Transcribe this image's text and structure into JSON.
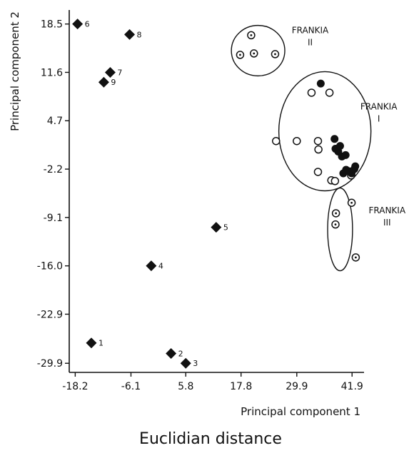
{
  "chart_data": {
    "type": "scatter",
    "xlabel": "Principal component 1",
    "ylabel": "Principal component 2",
    "caption": "Euclidian distance",
    "x_ticks": [
      -18.2,
      -6.1,
      5.8,
      17.8,
      29.9,
      41.9
    ],
    "x_tick_labels": [
      "-18.2",
      "-6.1",
      "5.8",
      "17.8",
      "29.9",
      "41.9"
    ],
    "y_ticks": [
      18.5,
      11.6,
      4.7,
      -2.2,
      -9.1,
      -16.0,
      -22.9,
      -29.9
    ],
    "y_tick_labels": [
      "18.5",
      "11.6",
      "4.7",
      "-2.2",
      "-9.1",
      "-16.0",
      "-22.9",
      "-29.9"
    ],
    "xlim": [
      -19.5,
      44.5
    ],
    "ylim": [
      -31.2,
      20.5
    ],
    "grid": false,
    "diamonds": [
      {
        "label": "1",
        "x": -14.7,
        "y": -27.0
      },
      {
        "label": "2",
        "x": 2.6,
        "y": -28.5
      },
      {
        "label": "3",
        "x": 5.8,
        "y": -29.9
      },
      {
        "label": "4",
        "x": -1.7,
        "y": -16.0
      },
      {
        "label": "5",
        "x": 12.4,
        "y": -10.5
      },
      {
        "label": "6",
        "x": -17.7,
        "y": 18.5
      },
      {
        "label": "7",
        "x": -10.6,
        "y": 11.6
      },
      {
        "label": "8",
        "x": -6.4,
        "y": 17.0
      },
      {
        "label": "9",
        "x": -12.0,
        "y": 10.2
      }
    ],
    "groups": [
      {
        "label_line1": "FRANKIA",
        "label_line2": "II",
        "label_anchor": {
          "x": 32.8,
          "y": 17.2
        },
        "ellipse": {
          "cx": 21.5,
          "cy": 14.7,
          "rx": 5.8,
          "ry": 3.6
        },
        "dot_circles": [
          {
            "x": 20.0,
            "y": 16.9
          },
          {
            "x": 17.6,
            "y": 14.1
          },
          {
            "x": 20.6,
            "y": 14.3
          },
          {
            "x": 25.2,
            "y": 14.2
          }
        ],
        "open_circles": [],
        "filled_circles": []
      },
      {
        "label_line1": "FRANKIA",
        "label_line2": "I",
        "label_anchor": {
          "x": 47.7,
          "y": 6.3
        },
        "ellipse": {
          "cx": 36.0,
          "cy": 3.2,
          "rx": 10.0,
          "ry": 8.5
        },
        "dot_circles": [
          {
            "x": 41.7,
            "y": -3.1
          }
        ],
        "open_circles": [
          {
            "x": 25.4,
            "y": 1.8
          },
          {
            "x": 29.9,
            "y": 1.8
          },
          {
            "x": 33.1,
            "y": 8.7
          },
          {
            "x": 34.5,
            "y": 1.8
          },
          {
            "x": 34.6,
            "y": 0.6
          },
          {
            "x": 34.5,
            "y": -2.6
          },
          {
            "x": 37.0,
            "y": 8.7
          },
          {
            "x": 37.4,
            "y": -3.8
          },
          {
            "x": 38.2,
            "y": -3.9
          }
        ],
        "filled_circles": [
          {
            "x": 35.1,
            "y": 10.0
          },
          {
            "x": 38.1,
            "y": 2.1
          },
          {
            "x": 38.3,
            "y": 0.7
          },
          {
            "x": 38.9,
            "y": 0.3
          },
          {
            "x": 39.3,
            "y": 1.1
          },
          {
            "x": 39.7,
            "y": -0.4
          },
          {
            "x": 40.5,
            "y": -0.2
          },
          {
            "x": 40.0,
            "y": -2.8
          },
          {
            "x": 40.6,
            "y": -2.3
          },
          {
            "x": 41.8,
            "y": -2.8
          },
          {
            "x": 42.4,
            "y": -2.2
          },
          {
            "x": 41.2,
            "y": -2.5
          },
          {
            "x": 42.6,
            "y": -1.8
          }
        ]
      },
      {
        "label_line1": "FRANKIA",
        "label_line2": "III",
        "label_anchor": {
          "x": 49.5,
          "y": -8.5
        },
        "ellipse": {
          "cx": 39.3,
          "cy": -10.8,
          "rx": 2.7,
          "ry": 5.9
        },
        "dot_circles": [
          {
            "x": 41.8,
            "y": -7.0
          },
          {
            "x": 38.4,
            "y": -8.5
          },
          {
            "x": 38.3,
            "y": -10.1
          },
          {
            "x": 42.7,
            "y": -14.8
          }
        ],
        "open_circles": [],
        "filled_circles": []
      }
    ]
  }
}
